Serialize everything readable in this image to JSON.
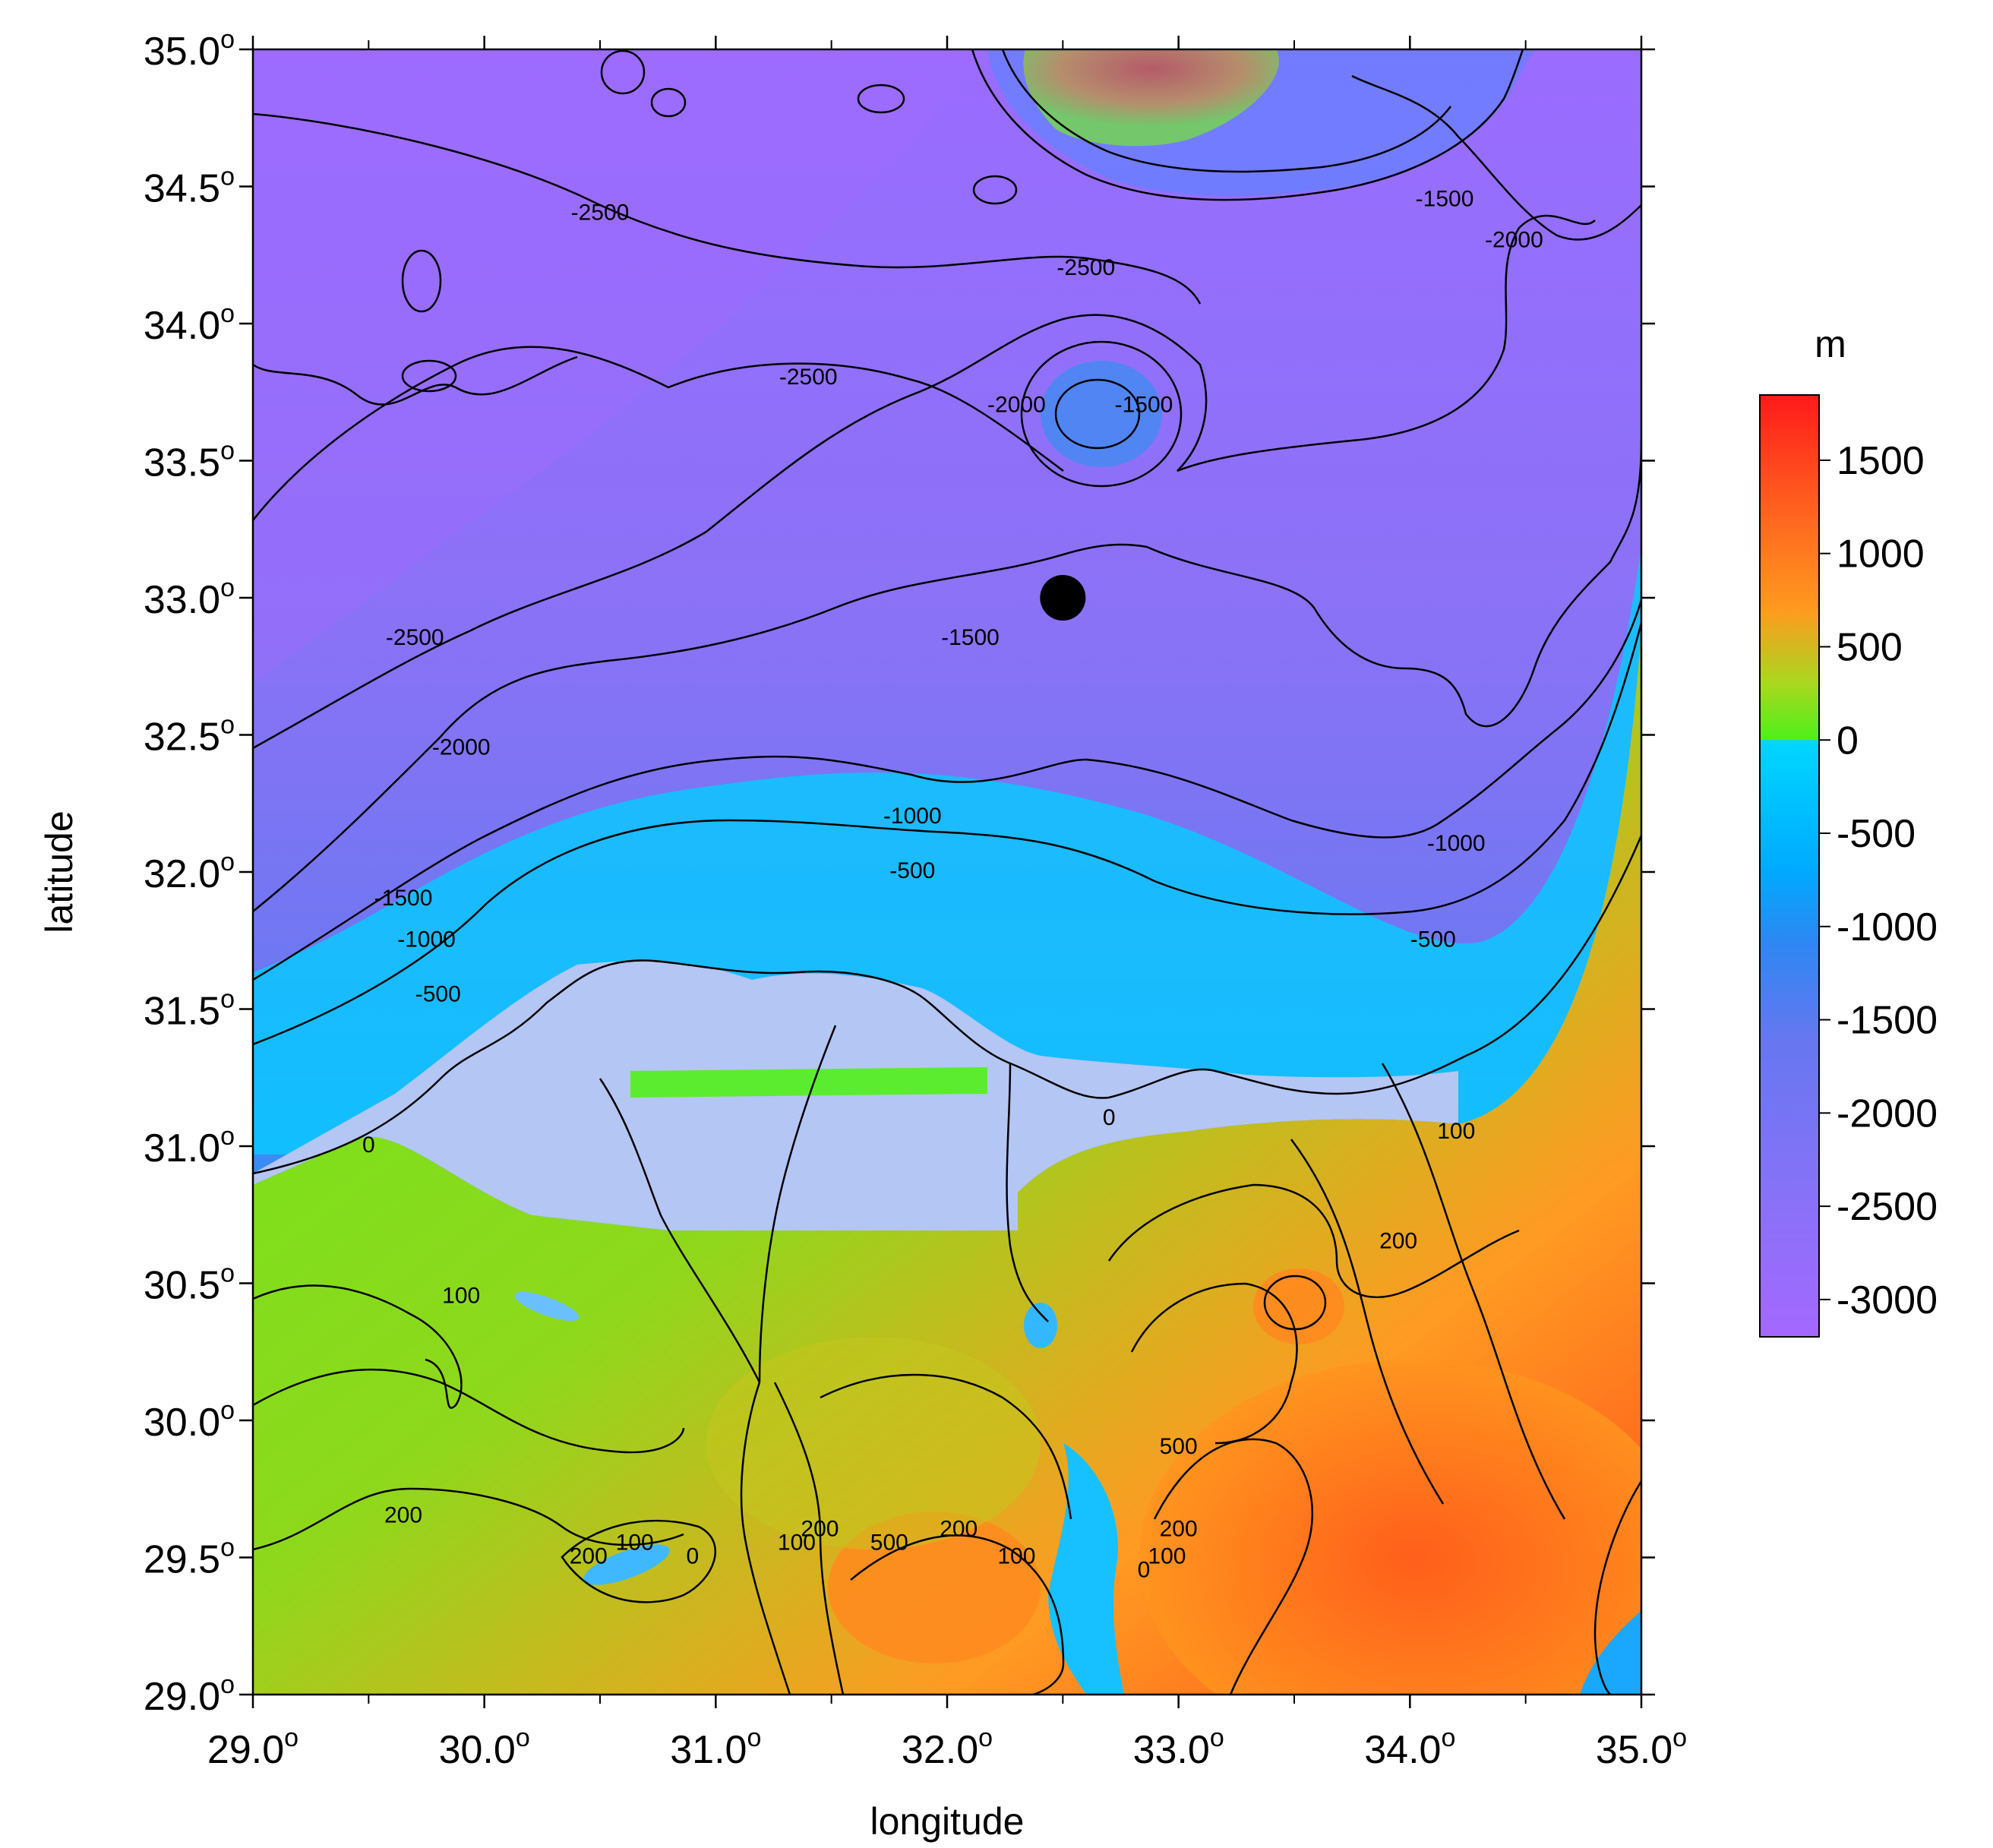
{
  "map": {
    "x_label": "longitude",
    "y_label": "latitude",
    "x_ticks": [
      "29.0",
      "30.0",
      "31.0",
      "32.0",
      "33.0",
      "34.0",
      "35.0"
    ],
    "y_ticks": [
      "35.0",
      "34.5",
      "34.0",
      "33.5",
      "33.0",
      "32.5",
      "32.0",
      "31.5",
      "31.0",
      "30.5",
      "30.0",
      "29.5",
      "29.0"
    ],
    "degree_symbol": "o",
    "x_range": [
      29.0,
      35.0
    ],
    "y_range": [
      29.0,
      35.0
    ],
    "marker": {
      "lon": 32.5,
      "lat": 33.0,
      "color": "#000000"
    },
    "contour_labels": [
      {
        "text": "-2500",
        "lon": 30.5,
        "lat": 34.4
      },
      {
        "text": "-2500",
        "lon": 32.6,
        "lat": 34.2
      },
      {
        "text": "-2500",
        "lon": 31.4,
        "lat": 33.8
      },
      {
        "text": "-2500",
        "lon": 29.7,
        "lat": 32.85
      },
      {
        "text": "-2000",
        "lon": 32.3,
        "lat": 33.7
      },
      {
        "text": "-1500",
        "lon": 32.85,
        "lat": 33.7
      },
      {
        "text": "-1500",
        "lon": 32.1,
        "lat": 32.85
      },
      {
        "text": "-1500",
        "lon": 34.15,
        "lat": 34.45
      },
      {
        "text": "-2000",
        "lon": 34.45,
        "lat": 34.3
      },
      {
        "text": "-2000",
        "lon": 29.9,
        "lat": 32.45
      },
      {
        "text": "-1500",
        "lon": 29.65,
        "lat": 31.9
      },
      {
        "text": "-1000",
        "lon": 29.75,
        "lat": 31.75
      },
      {
        "text": "-500",
        "lon": 29.8,
        "lat": 31.55
      },
      {
        "text": "-1000",
        "lon": 31.85,
        "lat": 32.2
      },
      {
        "text": "-500",
        "lon": 31.85,
        "lat": 32.0
      },
      {
        "text": "-1000",
        "lon": 34.2,
        "lat": 32.1
      },
      {
        "text": "-500",
        "lon": 34.1,
        "lat": 31.75
      },
      {
        "text": "0",
        "lon": 29.5,
        "lat": 31.0
      },
      {
        "text": "0",
        "lon": 32.7,
        "lat": 31.1
      },
      {
        "text": "100",
        "lon": 34.2,
        "lat": 31.05
      },
      {
        "text": "200",
        "lon": 33.95,
        "lat": 30.65
      },
      {
        "text": "100",
        "lon": 29.9,
        "lat": 30.45
      },
      {
        "text": "200",
        "lon": 29.65,
        "lat": 29.65
      },
      {
        "text": "200",
        "lon": 30.45,
        "lat": 29.5
      },
      {
        "text": "100",
        "lon": 30.65,
        "lat": 29.55
      },
      {
        "text": "0",
        "lon": 30.9,
        "lat": 29.5
      },
      {
        "text": "100",
        "lon": 31.35,
        "lat": 29.55
      },
      {
        "text": "200",
        "lon": 31.45,
        "lat": 29.6
      },
      {
        "text": "500",
        "lon": 31.75,
        "lat": 29.55
      },
      {
        "text": "200",
        "lon": 32.05,
        "lat": 29.6
      },
      {
        "text": "100",
        "lon": 32.3,
        "lat": 29.5
      },
      {
        "text": "500",
        "lon": 33.0,
        "lat": 29.9
      },
      {
        "text": "200",
        "lon": 33.0,
        "lat": 29.6
      },
      {
        "text": "100",
        "lon": 32.95,
        "lat": 29.5
      },
      {
        "text": "0",
        "lon": 32.85,
        "lat": 29.45
      }
    ]
  },
  "colorbar": {
    "unit": "m",
    "ticks": [
      "1500",
      "1000",
      "500",
      "0",
      "-500",
      "-1000",
      "-1500",
      "-2000",
      "-2500",
      "-3000"
    ],
    "range": [
      -3200,
      1850
    ],
    "stops": [
      {
        "value": 1850,
        "color": "#ff1a1a"
      },
      {
        "value": 1300,
        "color": "#ff5a1f"
      },
      {
        "value": 700,
        "color": "#ff9a1f"
      },
      {
        "value": 300,
        "color": "#a8d81f"
      },
      {
        "value": 1,
        "color": "#4ef01a"
      },
      {
        "value": -1,
        "color": "#00d7ff"
      },
      {
        "value": -700,
        "color": "#00aaff"
      },
      {
        "value": -1100,
        "color": "#2f86f2"
      },
      {
        "value": -1600,
        "color": "#6677f0"
      },
      {
        "value": -2400,
        "color": "#8672f7"
      },
      {
        "value": -3200,
        "color": "#a468ff"
      }
    ]
  }
}
